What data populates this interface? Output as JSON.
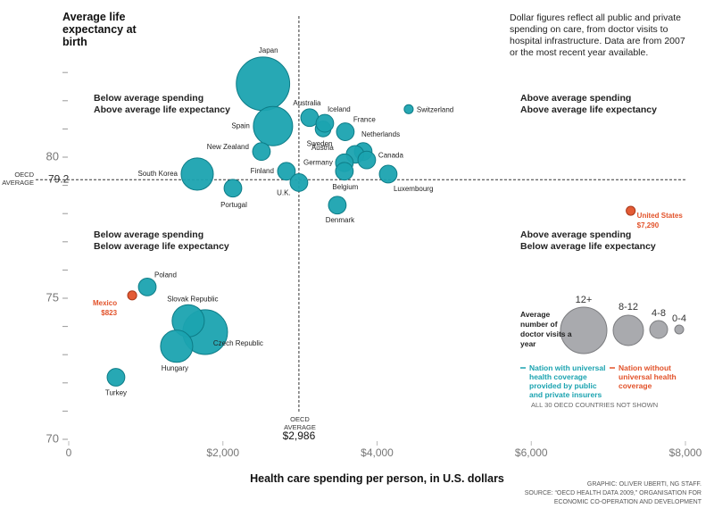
{
  "chart_data": {
    "type": "scatter",
    "title": "Average life expectancy at birth",
    "note": "Dollar figures reflect all public and private spending on care, from doctor visits to hospital infrastructure. Data are from 2007 or the most recent year available.",
    "x_label": "Health care spending per person, in U.S. dollars",
    "xlim": [
      0,
      8000
    ],
    "xticks": [
      0,
      {
        "value": 2000,
        "label": "$2,000"
      },
      {
        "value": 4000,
        "label": "$4,000"
      },
      {
        "value": 6000,
        "label": "$6,000"
      },
      {
        "value": 8000,
        "label": "$8,000"
      }
    ],
    "ylim": [
      70,
      85
    ],
    "yticks": [
      70,
      75,
      80
    ],
    "yminorticks": [
      71,
      72,
      73,
      74,
      76,
      77,
      78,
      79,
      81,
      82,
      83
    ],
    "reference_lines": {
      "y": {
        "value": 79.2,
        "caption": "OECD AVERAGE"
      },
      "x": {
        "value": 2986,
        "label": "$2,986",
        "caption": "OECD AVERAGE"
      }
    },
    "quadrants": [
      [
        "Below average spending",
        "Above average life expectancy"
      ],
      [
        "Above average spending",
        "Above average life expectancy"
      ],
      [
        "Below average spending",
        "Below average life expectancy"
      ],
      [
        "Above average spending",
        "Below average life expectancy"
      ]
    ],
    "size_legend": {
      "title": "Average number of doctor visits a year",
      "categories": [
        "12+",
        "8-12",
        "4-8",
        "0-4"
      ]
    },
    "series": [
      {
        "name": "Nation with universal health coverage provided by public and private insurers",
        "color": "#1ba3b0",
        "labels": [
          "Japan",
          "Switzerland",
          "Australia",
          "Sweden",
          "Iceland",
          "Spain",
          "France",
          "Netherlands",
          "Austria",
          "Canada",
          "Germany",
          "Belgium",
          "New Zealand",
          "South Korea",
          "Finland",
          "U.K.",
          "Portugal",
          "Luxembourg",
          "Denmark",
          "Poland",
          "Czech Republic",
          "Slovak Republic",
          "Hungary",
          "Turkey"
        ],
        "x": [
          2520,
          4410,
          3125,
          3300,
          3322,
          2650,
          3588,
          3820,
          3715,
          3866,
          3576,
          3576,
          2500,
          1667,
          2824,
          2986,
          2130,
          4144,
          3484,
          1019,
          1770,
          1550,
          1400,
          613
        ],
        "values": [
          82.6,
          81.7,
          81.4,
          81.0,
          81.2,
          81.1,
          80.9,
          80.2,
          80.1,
          79.9,
          79.8,
          79.5,
          80.2,
          79.4,
          79.5,
          79.1,
          78.9,
          79.4,
          78.3,
          75.4,
          73.8,
          74.2,
          73.3,
          72.2
        ],
        "sizes": [
          13.6,
          2.3,
          4.5,
          4,
          4.5,
          10,
          4.5,
          4.5,
          4.5,
          4.5,
          4.5,
          4.5,
          4.5,
          8.2,
          4.5,
          4.5,
          4.5,
          4.5,
          4.5,
          4.5,
          11.4,
          8.2,
          8.2,
          4.5
        ]
      },
      {
        "name": "Nation without universal health coverage",
        "color": "#e2522a",
        "labels": [
          "United States",
          "Mexico"
        ],
        "x": [
          7290,
          823
        ],
        "x_value_labels": [
          "$7,290",
          "$823"
        ],
        "values": [
          78.1,
          75.1
        ],
        "sizes": [
          2.3,
          2.3
        ]
      }
    ],
    "footnote": "ALL 30 OECD COUNTRIES NOT SHOWN",
    "credits": [
      "GRAPHIC: OLIVER UBERTI, NG STAFF.",
      "SOURCE: “OECD HEALTH DATA 2009,” ORGANISATION FOR",
      "ECONOMIC CO-OPERATION AND DEVELOPMENT"
    ]
  }
}
